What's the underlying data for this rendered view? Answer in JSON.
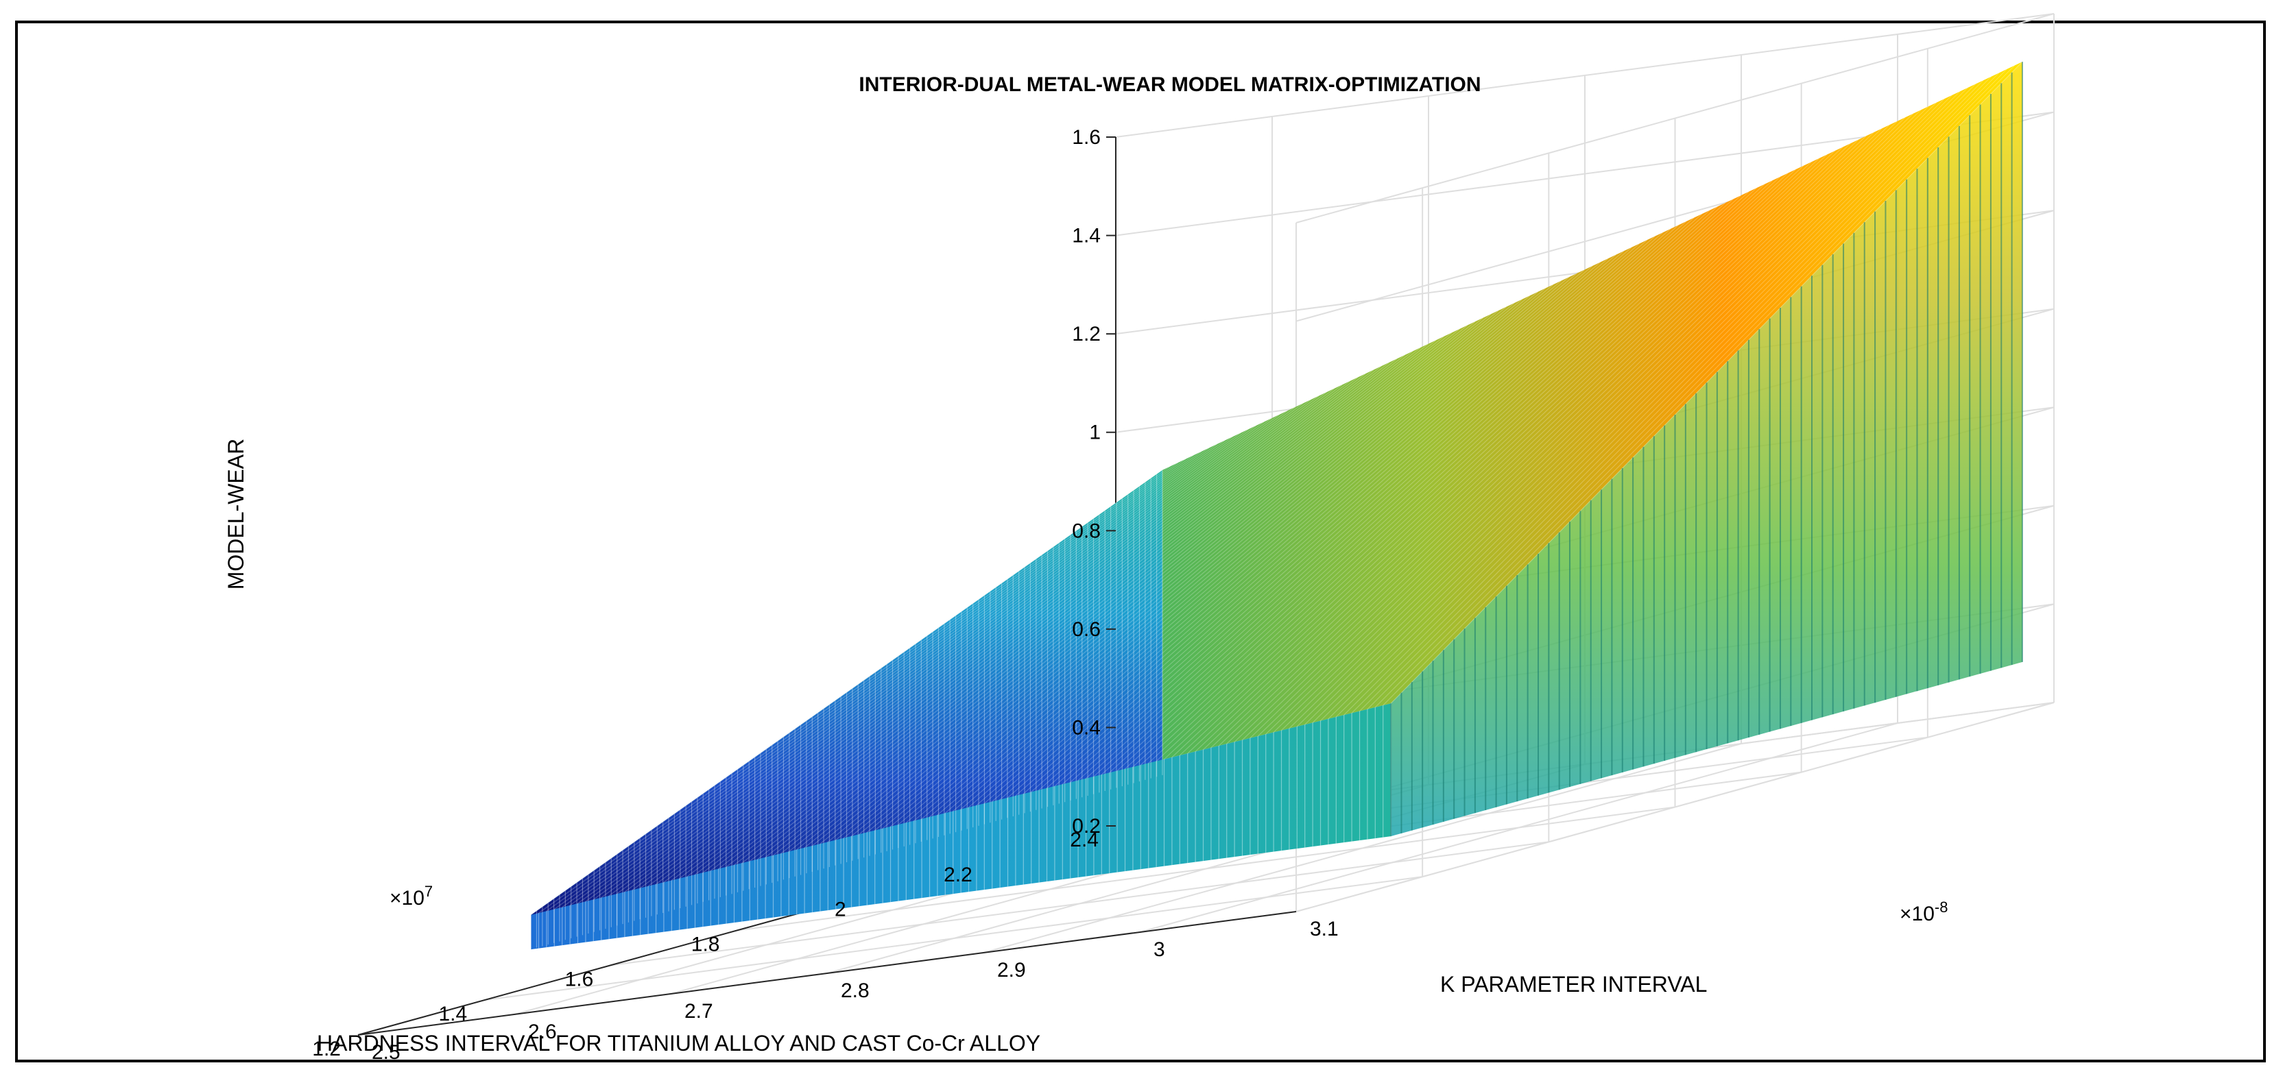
{
  "chart_data": {
    "type": "surface",
    "title": "INTERIOR-DUAL METAL-WEAR MODEL MATRIX-OPTIMIZATION",
    "xlabel": "K PARAMETER INTERVAL",
    "ylabel": "HARDNESS INTERVAL FOR TITANIUM ALLOY AND CAST Co-Cr ALLOY",
    "zlabel": "MODEL-WEAR",
    "x_exponent": "×10",
    "x_exponent_power": "-8",
    "y_exponent": "×10",
    "y_exponent_power": "7",
    "xlim": [
      2.5,
      3.1
    ],
    "ylim": [
      1.2,
      2.4
    ],
    "zlim": [
      0.2,
      1.6
    ],
    "x_ticks": [
      "2.5",
      "2.6",
      "2.7",
      "2.8",
      "2.9",
      "3",
      "3.1"
    ],
    "y_ticks": [
      "1.2",
      "1.4",
      "1.6",
      "1.8",
      "2",
      "2.2",
      "2.4"
    ],
    "z_ticks": [
      "0.2",
      "0.4",
      "0.6",
      "0.8",
      "1",
      "1.2",
      "1.4",
      "1.6"
    ],
    "x_range": [
      2.55,
      3.1
    ],
    "y_range": [
      1.35,
      2.35
    ],
    "grid": true,
    "colormap": "parula",
    "colors": [
      "#0c0c8a",
      "#1f5bd0",
      "#1d9fd0",
      "#21b89a",
      "#4cc35a",
      "#c9c42a",
      "#ff9900",
      "#ffea00"
    ],
    "corner_values": [
      {
        "x": 2.55,
        "y": 1.35,
        "z": 0.37
      },
      {
        "x": 2.55,
        "y": 2.35,
        "z": 0.92
      },
      {
        "x": 3.1,
        "y": 1.35,
        "z": 0.57
      },
      {
        "x": 3.1,
        "y": 2.35,
        "z": 1.52
      }
    ]
  }
}
